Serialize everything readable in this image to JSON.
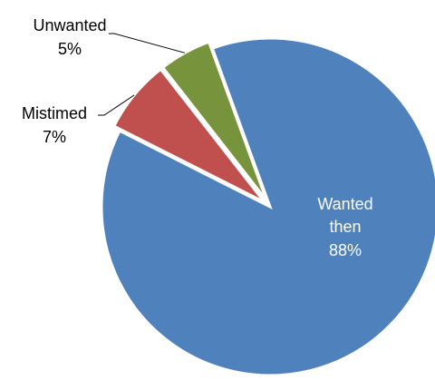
{
  "chart_data": {
    "type": "pie",
    "slices": [
      {
        "label": "Wanted then",
        "label_lines": [
          "Wanted",
          "then"
        ],
        "value": 88,
        "value_label": "88%",
        "color": "#4F81BD"
      },
      {
        "label": "Mistimed",
        "label_lines": [
          "Mistimed"
        ],
        "value": 7,
        "value_label": "7%",
        "color": "#C0504D"
      },
      {
        "label": "Unwanted",
        "label_lines": [
          "Unwanted"
        ],
        "value": 5,
        "value_label": "5%",
        "color": "#77933C"
      }
    ],
    "exploded": true,
    "legend": "none",
    "title": ""
  }
}
